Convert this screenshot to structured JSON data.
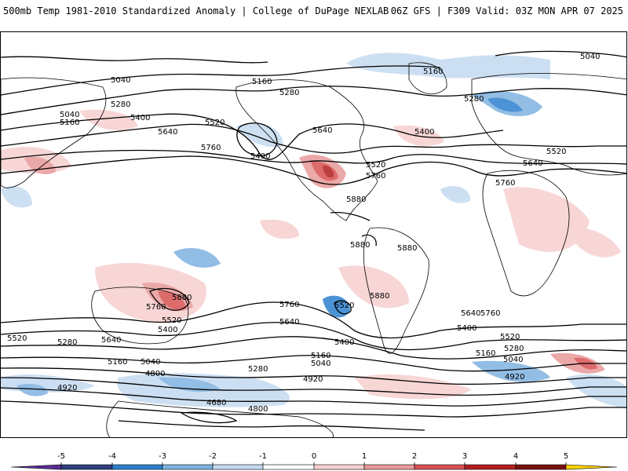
{
  "header": {
    "title": "500mb Temp 1981-2010 Standardized Anomaly | College of DuPage NEXLAB",
    "run_info": "06Z GFS | F309 Valid: 03Z MON APR 07 2025"
  },
  "map": {
    "contour_interval": 120,
    "contour_labels": [
      "5040",
      "5040",
      "5160",
      "5280",
      "5400",
      "5520",
      "5640",
      "5760",
      "5160",
      "5280",
      "5400",
      "5640",
      "5520",
      "5760",
      "5880",
      "5160",
      "5280",
      "5400",
      "5040",
      "5520",
      "5640",
      "5760",
      "5880",
      "5880",
      "5880",
      "5760",
      "5640",
      "5520",
      "5880",
      "5760",
      "5520",
      "5400",
      "5640",
      "5280",
      "5520",
      "5160",
      "5040",
      "4920",
      "4800",
      "4680",
      "4800",
      "5280",
      "5400",
      "5160",
      "5040",
      "4920",
      "5640",
      "5400",
      "5520",
      "5280",
      "5160",
      "5040",
      "4920",
      "5760"
    ],
    "land_outline_color": "#000000",
    "contour_color": "#000000"
  },
  "colorbar": {
    "ticks": [
      "-5",
      "-4",
      "-3",
      "-2",
      "-1",
      "0",
      "1",
      "2",
      "3",
      "4",
      "5"
    ],
    "colors": [
      "#5a2d91",
      "#2f3f7f",
      "#2d7fcf",
      "#7fb2e0",
      "#c4daf0",
      "#ffffff",
      "#f7cfcf",
      "#e89a9a",
      "#d85252",
      "#b21e1e",
      "#7a0f0f",
      "#ffd200"
    ]
  }
}
